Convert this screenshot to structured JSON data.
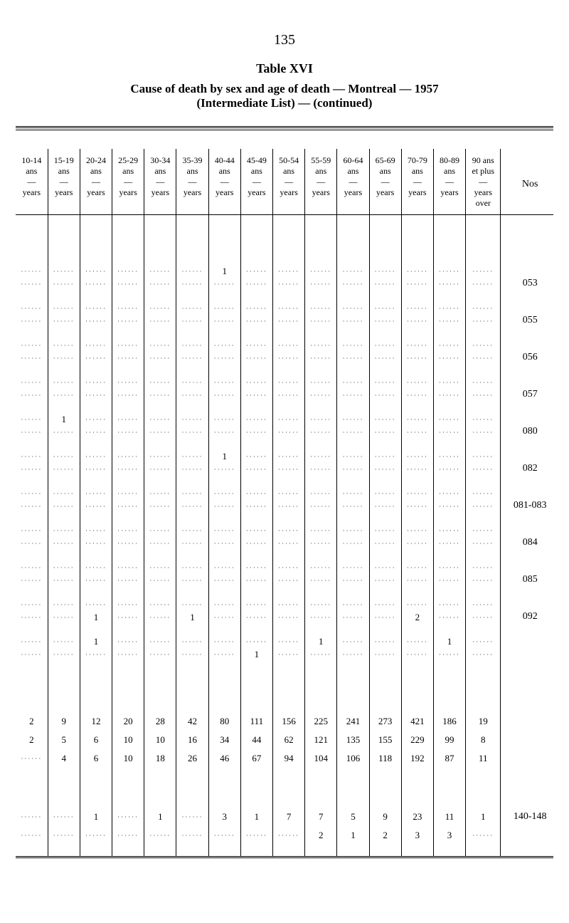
{
  "page_number": "135",
  "titles": {
    "table_num": "Table XVI",
    "caption1": "Cause of death by sex and age of death — Montreal — 1957",
    "caption2": "(Intermediate List) — (continued)"
  },
  "table": {
    "nos_label": "Nos",
    "dash": "—",
    "last_col": {
      "top": "90 ans",
      "sub": "et plus",
      "unit1": "years",
      "unit2": "over"
    },
    "columns": [
      {
        "range": "10-14",
        "sub": "ans",
        "unit": "years"
      },
      {
        "range": "15-19",
        "sub": "ans",
        "unit": "years"
      },
      {
        "range": "20-24",
        "sub": "ans",
        "unit": "years"
      },
      {
        "range": "25-29",
        "sub": "ans",
        "unit": "years"
      },
      {
        "range": "30-34",
        "sub": "ans",
        "unit": "years"
      },
      {
        "range": "35-39",
        "sub": "ans",
        "unit": "years"
      },
      {
        "range": "40-44",
        "sub": "ans",
        "unit": "years"
      },
      {
        "range": "45-49",
        "sub": "ans",
        "unit": "years"
      },
      {
        "range": "50-54",
        "sub": "ans",
        "unit": "years"
      },
      {
        "range": "55-59",
        "sub": "ans",
        "unit": "years"
      },
      {
        "range": "60-64",
        "sub": "ans",
        "unit": "years"
      },
      {
        "range": "65-69",
        "sub": "ans",
        "unit": "years"
      },
      {
        "range": "70-79",
        "sub": "ans",
        "unit": "years"
      },
      {
        "range": "80-89",
        "sub": "ans",
        "unit": "years"
      }
    ],
    "sections": [
      {
        "nos": "053",
        "rows": [
          {
            "cells": [
              "",
              "",
              "",
              "",
              "",
              "",
              "1",
              "",
              "",
              "",
              "",
              "",
              "",
              "",
              ""
            ]
          },
          {
            "cells": [
              "",
              "",
              "",
              "",
              "",
              "",
              "",
              "",
              "",
              "",
              "",
              "",
              "",
              "",
              ""
            ]
          }
        ]
      },
      {
        "nos": "055",
        "rows": [
          {
            "cells": [
              "",
              "",
              "",
              "",
              "",
              "",
              "",
              "",
              "",
              "",
              "",
              "",
              "",
              "",
              ""
            ]
          },
          {
            "cells": [
              "",
              "",
              "",
              "",
              "",
              "",
              "",
              "",
              "",
              "",
              "",
              "",
              "",
              "",
              ""
            ]
          }
        ]
      },
      {
        "nos": "056",
        "rows": [
          {
            "cells": [
              "",
              "",
              "",
              "",
              "",
              "",
              "",
              "",
              "",
              "",
              "",
              "",
              "",
              "",
              ""
            ]
          },
          {
            "cells": [
              "",
              "",
              "",
              "",
              "",
              "",
              "",
              "",
              "",
              "",
              "",
              "",
              "",
              "",
              ""
            ]
          }
        ]
      },
      {
        "nos": "057",
        "rows": [
          {
            "cells": [
              "",
              "",
              "",
              "",
              "",
              "",
              "",
              "",
              "",
              "",
              "",
              "",
              "",
              "",
              ""
            ]
          },
          {
            "cells": [
              "",
              "",
              "",
              "",
              "",
              "",
              "",
              "",
              "",
              "",
              "",
              "",
              "",
              "",
              ""
            ]
          }
        ]
      },
      {
        "nos": "080",
        "rows": [
          {
            "cells": [
              "",
              "1",
              "",
              "",
              "",
              "",
              "",
              "",
              "",
              "",
              "",
              "",
              "",
              "",
              ""
            ]
          },
          {
            "cells": [
              "",
              "",
              "",
              "",
              "",
              "",
              "",
              "",
              "",
              "",
              "",
              "",
              "",
              "",
              ""
            ]
          }
        ]
      },
      {
        "nos": "082",
        "rows": [
          {
            "cells": [
              "",
              "",
              "",
              "",
              "",
              "",
              "1",
              "",
              "",
              "",
              "",
              "",
              "",
              "",
              ""
            ]
          },
          {
            "cells": [
              "",
              "",
              "",
              "",
              "",
              "",
              "",
              "",
              "",
              "",
              "",
              "",
              "",
              "",
              ""
            ]
          }
        ]
      },
      {
        "nos": "081-083",
        "rows": [
          {
            "cells": [
              "",
              "",
              "",
              "",
              "",
              "",
              "",
              "",
              "",
              "",
              "",
              "",
              "",
              "",
              ""
            ]
          },
          {
            "cells": [
              "",
              "",
              "",
              "",
              "",
              "",
              "",
              "",
              "",
              "",
              "",
              "",
              "",
              "",
              ""
            ]
          }
        ]
      },
      {
        "nos": "084",
        "rows": [
          {
            "cells": [
              "",
              "",
              "",
              "",
              "",
              "",
              "",
              "",
              "",
              "",
              "",
              "",
              "",
              "",
              ""
            ]
          },
          {
            "cells": [
              "",
              "",
              "",
              "",
              "",
              "",
              "",
              "",
              "",
              "",
              "",
              "",
              "",
              "",
              ""
            ]
          }
        ]
      },
      {
        "nos": "085",
        "rows": [
          {
            "cells": [
              "",
              "",
              "",
              "",
              "",
              "",
              "",
              "",
              "",
              "",
              "",
              "",
              "",
              "",
              ""
            ]
          },
          {
            "cells": [
              "",
              "",
              "",
              "",
              "",
              "",
              "",
              "",
              "",
              "",
              "",
              "",
              "",
              "",
              ""
            ]
          }
        ]
      },
      {
        "nos": "092",
        "rows": [
          {
            "cells": [
              "",
              "",
              "",
              "",
              "",
              "",
              "",
              "",
              "",
              "",
              "",
              "",
              "",
              "",
              ""
            ]
          },
          {
            "cells": [
              "",
              "",
              "1",
              "",
              "",
              "1",
              "",
              "",
              "",
              "",
              "",
              "",
              "2",
              "",
              ""
            ]
          }
        ]
      },
      {
        "nos": "",
        "rows": [
          {
            "cells": [
              "",
              "",
              "1",
              "",
              "",
              "",
              "",
              "",
              "",
              "1",
              "",
              "",
              "",
              "1",
              ""
            ]
          },
          {
            "cells": [
              "",
              "",
              "",
              "",
              "",
              "",
              "",
              "1",
              "",
              "",
              "",
              "",
              "",
              "",
              ""
            ]
          }
        ]
      }
    ],
    "data_block": [
      {
        "cells": [
          "2",
          "9",
          "12",
          "20",
          "28",
          "42",
          "80",
          "111",
          "156",
          "225",
          "241",
          "273",
          "421",
          "186",
          "19"
        ],
        "nos": ""
      },
      {
        "cells": [
          "2",
          "5",
          "6",
          "10",
          "10",
          "16",
          "34",
          "44",
          "62",
          "121",
          "135",
          "155",
          "229",
          "99",
          "8"
        ],
        "nos": ""
      },
      {
        "cells": [
          "",
          "4",
          "6",
          "10",
          "18",
          "26",
          "46",
          "67",
          "94",
          "104",
          "106",
          "118",
          "192",
          "87",
          "11"
        ],
        "nos": ""
      }
    ],
    "footer_block": [
      {
        "cells": [
          "",
          "",
          "1",
          "",
          "1",
          "",
          "3",
          "1",
          "7",
          "7",
          "5",
          "9",
          "23",
          "11",
          "1"
        ],
        "nos": "140-148"
      },
      {
        "cells": [
          "",
          "",
          "",
          "",
          "",
          "",
          "",
          "",
          "",
          "2",
          "1",
          "2",
          "3",
          "3",
          ""
        ],
        "nos": ""
      }
    ]
  }
}
